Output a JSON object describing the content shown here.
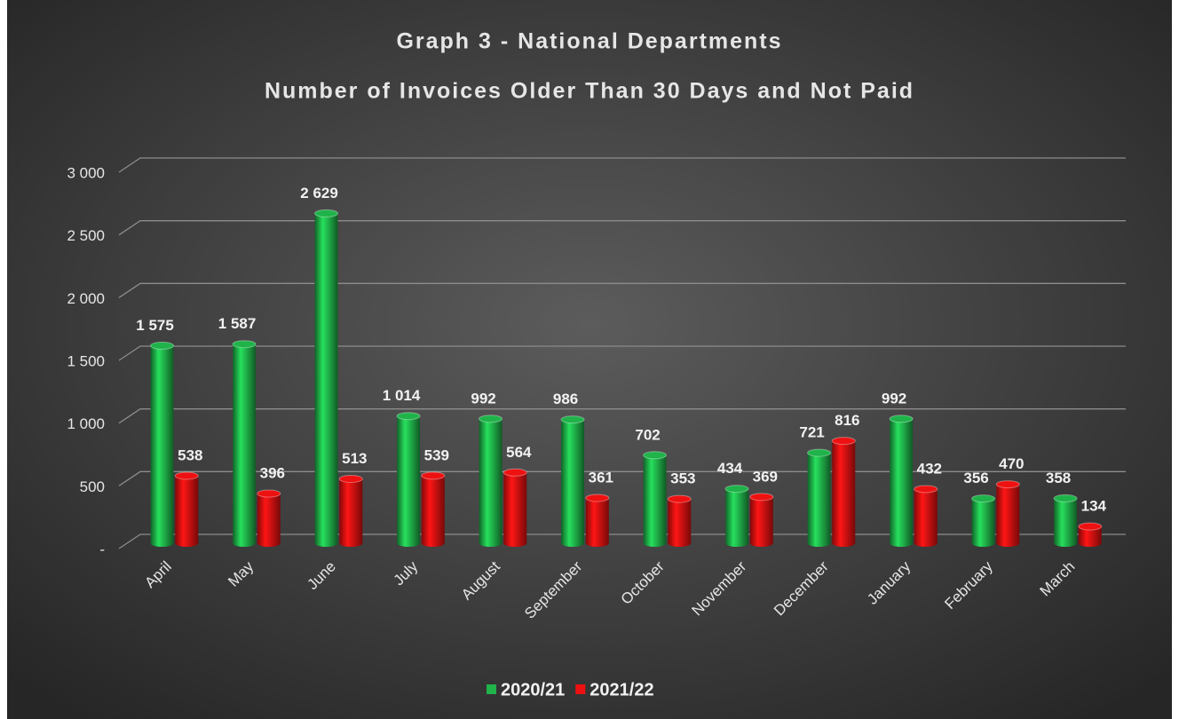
{
  "chart_data": {
    "type": "bar",
    "title": "Graph 3 - National Departments",
    "subtitle": "Number of Invoices Older Than 30 Days and Not Paid",
    "categories": [
      "April",
      "May",
      "June",
      "July",
      "August",
      "September",
      "October",
      "November",
      "December",
      "January",
      "February",
      "March"
    ],
    "series": [
      {
        "name": "2020/21",
        "color": "#1fb34a",
        "values": [
          1575,
          1587,
          2629,
          1014,
          992,
          986,
          702,
          434,
          721,
          992,
          356,
          358
        ],
        "value_labels": [
          "1 575",
          "1 587",
          "2 629",
          "1 014",
          "992",
          "986",
          "702",
          "434",
          "721",
          "992",
          "356",
          "358"
        ]
      },
      {
        "name": "2021/22",
        "color": "#ee1111",
        "values": [
          538,
          396,
          513,
          539,
          564,
          361,
          353,
          369,
          816,
          432,
          470,
          134
        ],
        "value_labels": [
          "538",
          "396",
          "513",
          "539",
          "564",
          "361",
          "353",
          "369",
          "816",
          "432",
          "470",
          "134"
        ]
      }
    ],
    "ylim": [
      0,
      3000
    ],
    "yticks": [
      {
        "value": 0,
        "label": "-"
      },
      500,
      {
        "value": 1000,
        "label": "1 000"
      },
      {
        "value": 1500,
        "label": "1 500"
      },
      {
        "value": 2000,
        "label": "2 000"
      },
      {
        "value": 2500,
        "label": "2 500"
      },
      {
        "value": 3000,
        "label": "3 000"
      }
    ],
    "grid": true,
    "legend": "bottom"
  }
}
